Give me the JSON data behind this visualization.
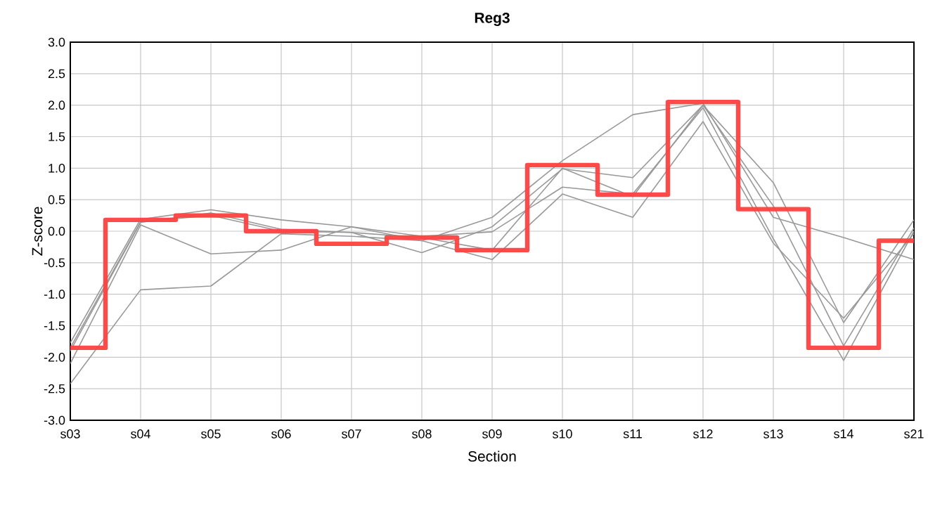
{
  "chart_data": {
    "type": "line",
    "title": "Reg3",
    "xlabel": "Section",
    "ylabel": "Z-score",
    "categories": [
      "s03",
      "s04",
      "s05",
      "s06",
      "s07",
      "s08",
      "s09",
      "s10",
      "s11",
      "s12",
      "s13",
      "s14",
      "s21"
    ],
    "series": [
      {
        "color": "#999999",
        "values": [
          -1.77,
          0.19,
          0.34,
          0.18,
          0.07,
          -0.15,
          0.22,
          1.12,
          1.85,
          2.03,
          0.22,
          -0.1,
          -0.45
        ]
      },
      {
        "color": "#999999",
        "values": [
          -1.9,
          0.14,
          0.29,
          0.03,
          -0.02,
          -0.34,
          0.07,
          0.99,
          0.85,
          2.0,
          0.77,
          -1.45,
          0.18
        ]
      },
      {
        "color": "#999999",
        "values": [
          -2.1,
          0.1,
          -0.36,
          -0.3,
          0.07,
          -0.08,
          -0.01,
          0.7,
          0.59,
          1.96,
          -0.12,
          -2.05,
          0.0
        ]
      },
      {
        "color": "#999999",
        "values": [
          -2.42,
          -0.93,
          -0.87,
          -0.04,
          -0.08,
          -0.15,
          -0.45,
          0.59,
          0.22,
          1.74,
          -0.19,
          -1.38,
          -0.04
        ]
      },
      {
        "color": "#999999",
        "values": [
          -1.85,
          0.15,
          0.25,
          0.0,
          -0.02,
          -0.1,
          -0.3,
          1.0,
          0.55,
          2.0,
          0.4,
          -1.82,
          0.05
        ]
      },
      {
        "type": "step",
        "color": "#ff4040",
        "values": [
          -1.85,
          0.18,
          0.25,
          0.0,
          -0.2,
          -0.1,
          -0.3,
          1.05,
          0.58,
          2.05,
          0.35,
          -1.85,
          -0.15
        ]
      }
    ],
    "ylim": [
      -3.0,
      3.0
    ],
    "yticks": [
      {
        "value": -3,
        "label": "-3.0"
      },
      {
        "value": -2.5,
        "label": "-2.5"
      },
      {
        "value": -2,
        "label": "-2.0"
      },
      {
        "value": -1.5,
        "label": "-1.5"
      },
      {
        "value": -1,
        "label": "-1.0"
      },
      {
        "value": -0.5,
        "label": "-0.5"
      },
      {
        "value": 0,
        "label": "0.0"
      },
      {
        "value": 0.5,
        "label": "0.5"
      },
      {
        "value": 1,
        "label": "1.0"
      },
      {
        "value": 1.5,
        "label": "1.5"
      },
      {
        "value": 2,
        "label": "2.0"
      },
      {
        "value": 2.5,
        "label": "2.5"
      },
      {
        "value": 3,
        "label": "3.0"
      }
    ],
    "grid": true
  }
}
